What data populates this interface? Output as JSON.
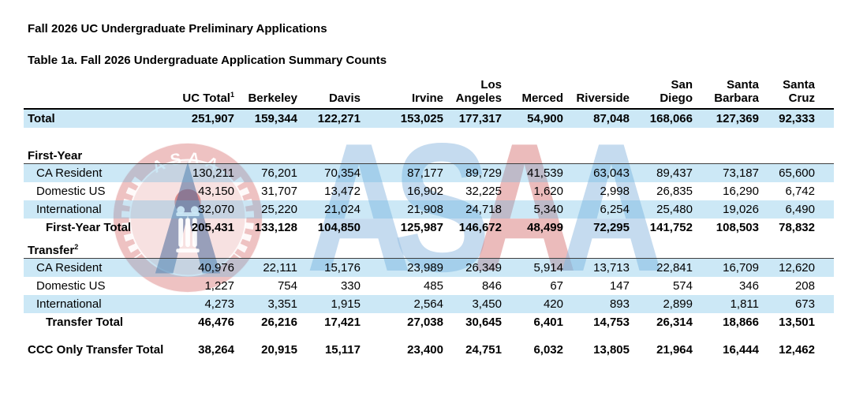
{
  "page": {
    "title": "Fall 2026 UC Undergraduate Preliminary Applications",
    "subtitle": "Table 1a. Fall 2026 Undergraduate Application Summary Counts"
  },
  "watermark": {
    "seal_text": "ASAA",
    "letters": [
      {
        "char": "A",
        "color": "rgba(150,190,225,0.55)"
      },
      {
        "char": "S",
        "color": "rgba(150,190,225,0.55)"
      },
      {
        "char": "A",
        "color": "rgba(215,120,120,0.50)"
      },
      {
        "char": "A",
        "color": "rgba(150,190,225,0.55)"
      }
    ]
  },
  "colors": {
    "row_shade": "#cfe9f7",
    "text": "#000000",
    "watermark_blue": "#96bee1",
    "watermark_red": "#d77878"
  },
  "table": {
    "columns": [
      {
        "label": "UC Total",
        "sup": "1"
      },
      {
        "label": "Berkeley"
      },
      {
        "label": "Davis"
      },
      {
        "label": "Irvine"
      },
      {
        "label": "Los\nAngeles"
      },
      {
        "label": "Merced"
      },
      {
        "label": "Riverside"
      },
      {
        "label": "San\nDiego"
      },
      {
        "label": "Santa\nBarbara"
      },
      {
        "label": "Santa\nCruz"
      }
    ],
    "rows": [
      {
        "type": "data",
        "label": "Total",
        "bold": true,
        "shaded": true,
        "indent": 0,
        "values": [
          "251,907",
          "159,344",
          "122,271",
          "153,025",
          "177,317",
          "54,900",
          "87,048",
          "168,066",
          "127,369",
          "92,333"
        ]
      },
      {
        "type": "gap"
      },
      {
        "type": "section",
        "label": "First-Year",
        "sup": ""
      },
      {
        "type": "data",
        "label": "CA Resident",
        "bold": false,
        "shaded": true,
        "indent": 1,
        "values": [
          "130,211",
          "76,201",
          "70,354",
          "87,177",
          "89,729",
          "41,539",
          "63,043",
          "89,437",
          "73,187",
          "65,600"
        ]
      },
      {
        "type": "data",
        "label": "Domestic US",
        "bold": false,
        "shaded": false,
        "indent": 1,
        "values": [
          "43,150",
          "31,707",
          "13,472",
          "16,902",
          "32,225",
          "1,620",
          "2,998",
          "26,835",
          "16,290",
          "6,742"
        ]
      },
      {
        "type": "data",
        "label": "International",
        "bold": false,
        "shaded": true,
        "indent": 1,
        "values": [
          "32,070",
          "25,220",
          "21,024",
          "21,908",
          "24,718",
          "5,340",
          "6,254",
          "25,480",
          "19,026",
          "6,490"
        ]
      },
      {
        "type": "data",
        "label": "First-Year Total",
        "bold": true,
        "shaded": false,
        "indent": 2,
        "values": [
          "205,431",
          "133,128",
          "104,850",
          "125,987",
          "146,672",
          "48,499",
          "72,295",
          "141,752",
          "108,503",
          "78,832"
        ]
      },
      {
        "type": "section",
        "label": "Transfer",
        "sup": "2"
      },
      {
        "type": "data",
        "label": "CA Resident",
        "bold": false,
        "shaded": true,
        "indent": 1,
        "values": [
          "40,976",
          "22,111",
          "15,176",
          "23,989",
          "26,349",
          "5,914",
          "13,713",
          "22,841",
          "16,709",
          "12,620"
        ]
      },
      {
        "type": "data",
        "label": "Domestic US",
        "bold": false,
        "shaded": false,
        "indent": 1,
        "values": [
          "1,227",
          "754",
          "330",
          "485",
          "846",
          "67",
          "147",
          "574",
          "346",
          "208"
        ]
      },
      {
        "type": "data",
        "label": "International",
        "bold": false,
        "shaded": true,
        "indent": 1,
        "values": [
          "4,273",
          "3,351",
          "1,915",
          "2,564",
          "3,450",
          "420",
          "893",
          "2,899",
          "1,811",
          "673"
        ]
      },
      {
        "type": "data",
        "label": "Transfer Total",
        "bold": true,
        "shaded": false,
        "indent": 2,
        "values": [
          "46,476",
          "26,216",
          "17,421",
          "27,038",
          "30,645",
          "6,401",
          "14,753",
          "26,314",
          "18,866",
          "13,501"
        ]
      },
      {
        "type": "gap_small"
      },
      {
        "type": "data",
        "label": "CCC Only Transfer Total",
        "bold": true,
        "shaded": false,
        "indent": 0,
        "values": [
          "38,264",
          "20,915",
          "15,117",
          "23,400",
          "24,751",
          "6,032",
          "13,805",
          "21,964",
          "16,444",
          "12,462"
        ]
      }
    ]
  }
}
